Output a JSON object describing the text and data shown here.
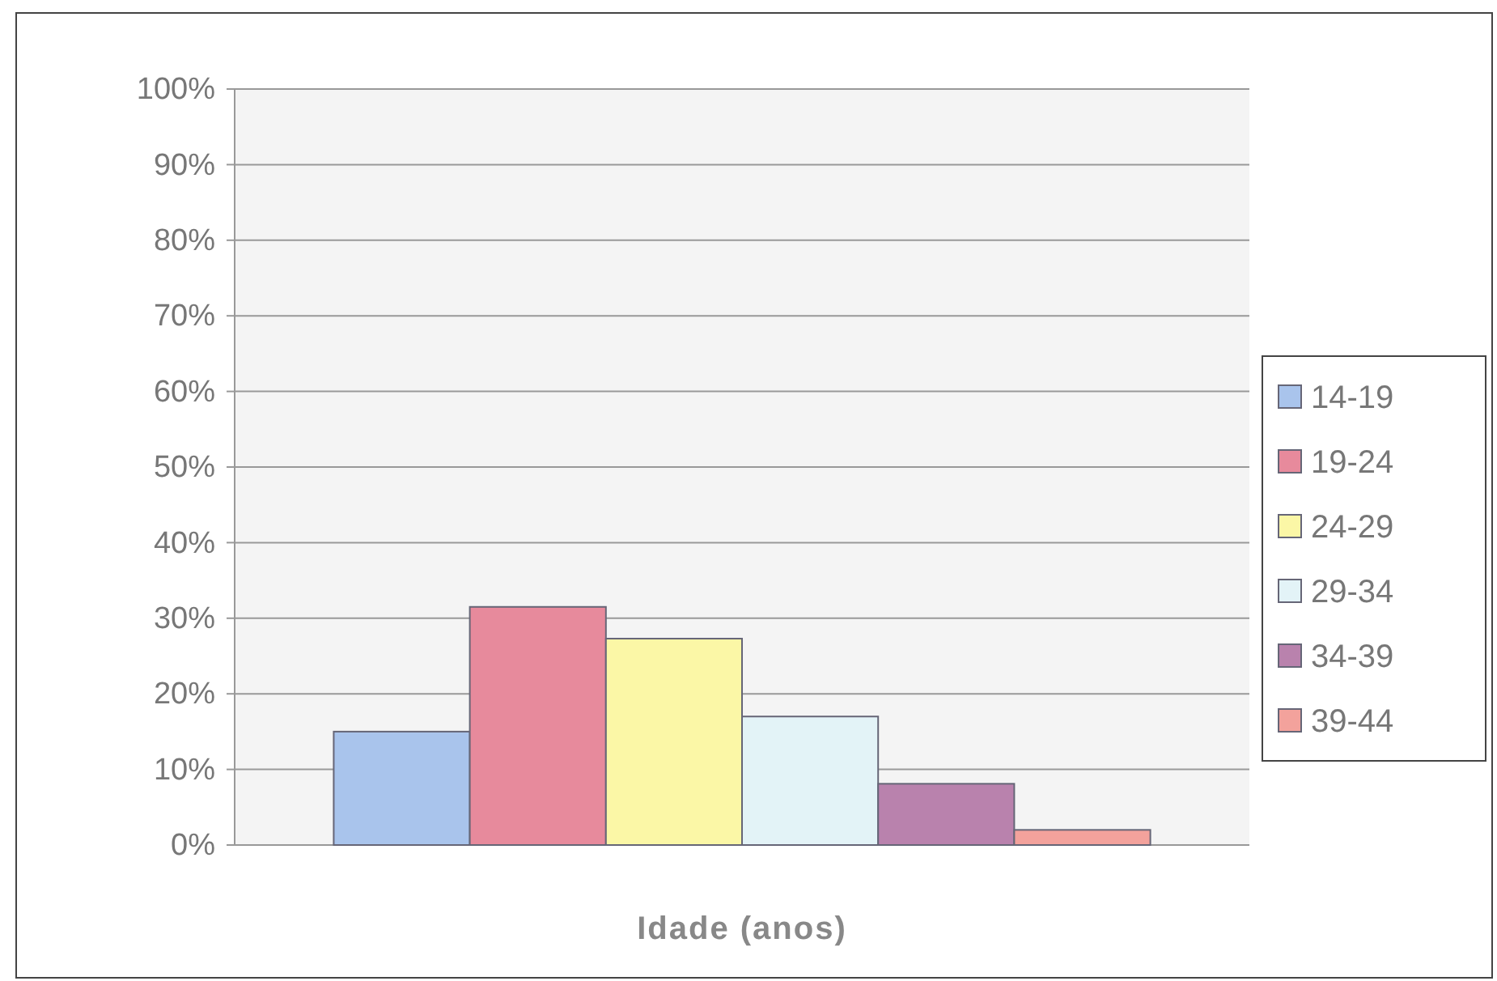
{
  "chart_data": {
    "type": "bar",
    "xlabel": "Idade (anos)",
    "categories": [
      null
    ],
    "series": [
      {
        "name": "14-19",
        "color": "#a9c4ec",
        "values": [
          15
        ]
      },
      {
        "name": "19-24",
        "color": "#e78a9c",
        "values": [
          31.5
        ]
      },
      {
        "name": "24-29",
        "color": "#fbf7a6",
        "values": [
          27.3
        ]
      },
      {
        "name": "29-34",
        "color": "#e3f3f7",
        "values": [
          17
        ]
      },
      {
        "name": "34-39",
        "color": "#b982ad",
        "values": [
          8.1
        ]
      },
      {
        "name": "39-44",
        "color": "#f3a29c",
        "values": [
          2
        ]
      }
    ],
    "ylim": [
      0,
      100
    ],
    "yticks": [
      {
        "value": 0,
        "label": "0%"
      },
      {
        "value": 10,
        "label": "10%"
      },
      {
        "value": 20,
        "label": "20%"
      },
      {
        "value": 30,
        "label": "30%"
      },
      {
        "value": 40,
        "label": "40%"
      },
      {
        "value": 50,
        "label": "50%"
      },
      {
        "value": 60,
        "label": "60%"
      },
      {
        "value": 70,
        "label": "70%"
      },
      {
        "value": 80,
        "label": "80%"
      },
      {
        "value": 90,
        "label": "90%"
      },
      {
        "value": 100,
        "label": "100%"
      }
    ],
    "grid": "y",
    "legend": "right"
  }
}
